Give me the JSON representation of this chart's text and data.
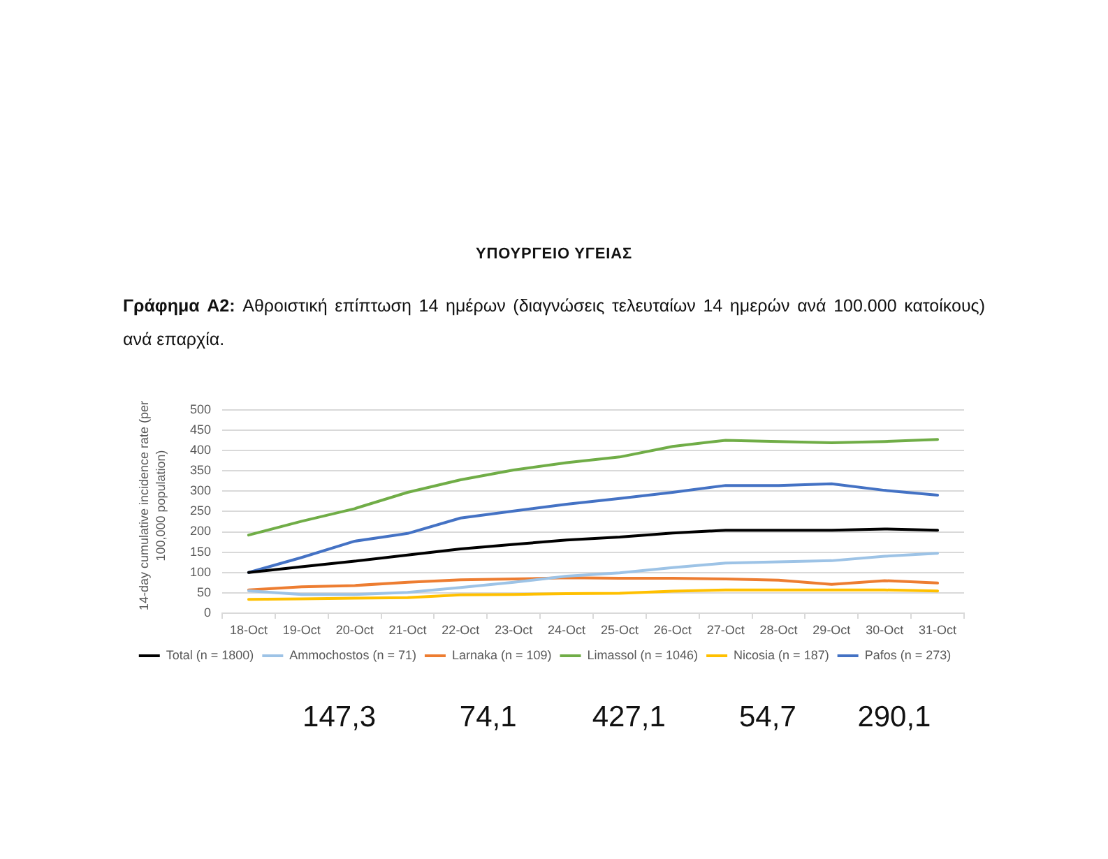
{
  "chart_data": {
    "type": "line",
    "title": "Γράφημα A2: Αθροιστική επίπτωση 14 ημέρων (διαγνώσεις τελευταίων 14 ημερών ανά 100.000 κατοίκους) ανά επαρχία.",
    "ylabel": "14-day cumulative incidence rate (per 100,000 population)",
    "categories": [
      "18-Oct",
      "19-Oct",
      "20-Oct",
      "21-Oct",
      "22-Oct",
      "23-Oct",
      "24-Oct",
      "25-Oct",
      "26-Oct",
      "27-Oct",
      "28-Oct",
      "29-Oct",
      "30-Oct",
      "31-Oct"
    ],
    "series": [
      {
        "name": "Total (n = 1800)",
        "color": "#000000",
        "values": [
          100,
          114,
          128,
          143,
          158,
          169,
          180,
          187,
          197,
          204,
          204,
          204,
          207,
          204
        ]
      },
      {
        "name": "Ammochostos (n = 71)",
        "color": "#9dc3e6",
        "values": [
          55,
          46,
          46,
          51,
          63,
          76,
          91,
          99,
          112,
          123,
          126,
          129,
          140,
          147.3
        ]
      },
      {
        "name": "Larnaka (n = 109)",
        "color": "#ed7d31",
        "values": [
          57,
          65,
          68,
          76,
          82,
          84,
          87,
          86,
          86,
          84,
          81,
          71,
          80,
          74.1
        ]
      },
      {
        "name": "Limassol (n = 1046)",
        "color": "#70ad47",
        "values": [
          192,
          226,
          257,
          297,
          328,
          352,
          370,
          384,
          410,
          425,
          422,
          419,
          422,
          427.1
        ]
      },
      {
        "name": "Nicosia (n = 187)",
        "color": "#ffc000",
        "values": [
          34,
          35,
          37,
          38,
          45,
          46,
          48,
          49,
          54,
          57,
          57,
          57,
          57,
          54.7
        ]
      },
      {
        "name": "Pafos (n = 273)",
        "color": "#4472c4",
        "values": [
          100,
          137,
          177,
          196,
          234,
          251,
          268,
          282,
          297,
          314,
          314,
          318,
          302,
          290.1
        ]
      }
    ],
    "ylim": [
      0,
      500
    ],
    "yticks": [
      0,
      50,
      100,
      150,
      200,
      250,
      300,
      350,
      400,
      450,
      500
    ],
    "grid": "y",
    "legend": "bottom",
    "marker": "none",
    "annotations": [
      "ΥΠΟΥΡΓΕΙΟ ΥΓΕΙΑΣ",
      "147,3",
      "74,1",
      "427,1",
      "54,7",
      "290,1"
    ]
  }
}
